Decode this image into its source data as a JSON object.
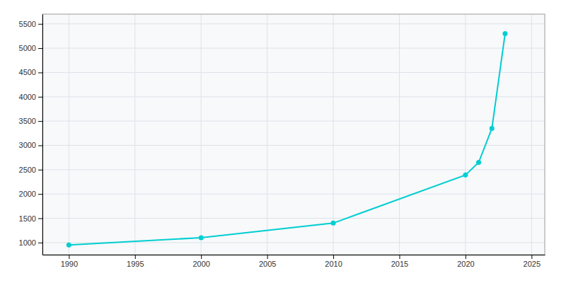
{
  "chart_data": {
    "type": "line",
    "x": [
      1990,
      2000,
      2010,
      2020,
      2021,
      2022,
      2023
    ],
    "values": [
      950,
      1100,
      1400,
      2390,
      2650,
      3350,
      5300
    ],
    "color": "#00CED1",
    "marker": "circle",
    "xlim": [
      1988,
      2026
    ],
    "ylim": [
      750,
      5700
    ],
    "xticks": [
      1990,
      1995,
      2000,
      2005,
      2010,
      2015,
      2020,
      2025
    ],
    "yticks": [
      1000,
      1500,
      2000,
      2500,
      3000,
      3500,
      4000,
      4500,
      5000,
      5500
    ],
    "grid": true
  }
}
